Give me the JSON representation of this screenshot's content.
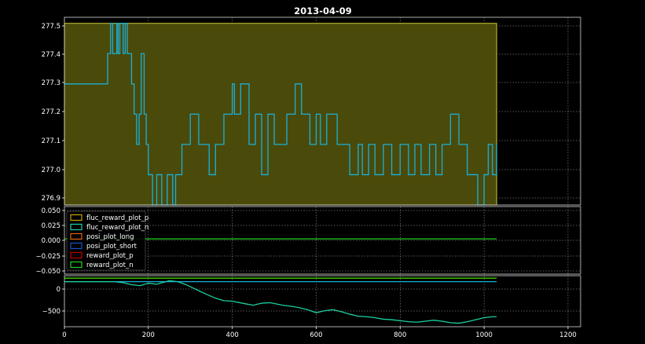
{
  "chart_data": [
    {
      "type": "line",
      "title": "2013-04-09",
      "xlim": [
        0,
        1230
      ],
      "ylim": [
        276.9,
        277.52
      ],
      "yticks": [
        "277.5",
        "277.4",
        "277.3",
        "277.2",
        "277.1",
        "277.0",
        "276.9"
      ],
      "grid": true,
      "shaded_region": {
        "x": [
          0,
          1030
        ],
        "y": [
          276.9,
          277.5
        ],
        "color": "#4a4a0a",
        "edge": "#c8c832"
      },
      "series": [
        {
          "color": "#1ab0d8",
          "x": [
            0,
            100,
            103,
            110,
            115,
            125,
            128,
            132,
            140,
            145,
            150,
            160,
            166,
            172,
            178,
            183,
            190,
            195,
            200,
            210,
            220,
            232,
            245,
            258,
            265,
            280,
            300,
            320,
            345,
            360,
            380,
            400,
            405,
            420,
            440,
            455,
            470,
            485,
            500,
            530,
            550,
            565,
            585,
            600,
            610,
            625,
            650,
            680,
            700,
            710,
            725,
            740,
            760,
            780,
            800,
            820,
            835,
            850,
            870,
            885,
            900,
            920,
            940,
            960,
            985,
            1000,
            1010,
            1020,
            1030
          ],
          "y": [
            277.3,
            277.3,
            277.4,
            277.5,
            277.4,
            277.5,
            277.4,
            277.5,
            277.4,
            277.5,
            277.4,
            277.3,
            277.2,
            277.1,
            277.2,
            277.4,
            277.2,
            277.1,
            277.0,
            276.9,
            277.0,
            276.9,
            277.0,
            276.9,
            277.0,
            277.1,
            277.2,
            277.1,
            277.0,
            277.1,
            277.2,
            277.3,
            277.2,
            277.3,
            277.1,
            277.2,
            277.0,
            277.2,
            277.1,
            277.2,
            277.3,
            277.2,
            277.1,
            277.2,
            277.1,
            277.2,
            277.1,
            277.0,
            277.1,
            277.0,
            277.1,
            277.0,
            277.1,
            277.0,
            277.1,
            277.0,
            277.1,
            277.0,
            277.1,
            277.0,
            277.1,
            277.2,
            277.1,
            277.0,
            276.9,
            277.0,
            277.1,
            277.0,
            277.1
          ]
        }
      ]
    },
    {
      "type": "line",
      "xlim": [
        0,
        1230
      ],
      "ylim": [
        -0.06,
        0.055
      ],
      "yticks": [
        "0.050",
        "0.025",
        "0.000",
        "−0.025",
        "−0.050"
      ],
      "grid": true,
      "legend": {
        "placement": "lower-left",
        "entries": [
          {
            "label": "fluc_reward_plot_p",
            "color": "#c8a000"
          },
          {
            "label": "fluc_reward_plot_n",
            "color": "#1ad0b0"
          },
          {
            "label": "posi_plot_long",
            "color": "#e06010"
          },
          {
            "label": "posi_plot_short",
            "color": "#1a50c8"
          },
          {
            "label": "reward_plot_p",
            "color": "#c00000"
          },
          {
            "label": "reward_plot_n",
            "color": "#20d020"
          }
        ]
      },
      "series": [
        {
          "color": "#20d020",
          "x": [
            0,
            1030
          ],
          "y": [
            0,
            0
          ]
        }
      ]
    },
    {
      "type": "line",
      "xlim": [
        0,
        1230
      ],
      "ylim": [
        -900,
        120
      ],
      "xticks": [
        "0",
        "200",
        "400",
        "600",
        "800",
        "1000",
        "1200"
      ],
      "yticks": [
        "0",
        "−500"
      ],
      "grid": true,
      "series": [
        {
          "color": "#40d000",
          "x": [
            0,
            1030
          ],
          "y": [
            70,
            70
          ]
        },
        {
          "color": "#1ab0d8",
          "x": [
            0,
            1030
          ],
          "y": [
            0,
            0
          ]
        },
        {
          "color": "#1ad0a0",
          "x": [
            0,
            120,
            140,
            160,
            180,
            200,
            220,
            250,
            270,
            290,
            310,
            330,
            360,
            380,
            400,
            430,
            450,
            470,
            490,
            520,
            540,
            560,
            580,
            600,
            620,
            640,
            660,
            680,
            700,
            720,
            740,
            760,
            780,
            800,
            820,
            840,
            860,
            880,
            900,
            920,
            940,
            960,
            980,
            1000,
            1020,
            1030
          ],
          "y": [
            0,
            0,
            -20,
            -60,
            -80,
            -30,
            -50,
            20,
            0,
            -60,
            -140,
            -220,
            -330,
            -380,
            -390,
            -440,
            -470,
            -430,
            -420,
            -470,
            -490,
            -520,
            -560,
            -620,
            -580,
            -560,
            -600,
            -650,
            -690,
            -700,
            -720,
            -750,
            -760,
            -780,
            -800,
            -810,
            -790,
            -770,
            -790,
            -820,
            -830,
            -800,
            -760,
            -720,
            -700,
            -700
          ]
        }
      ]
    }
  ]
}
